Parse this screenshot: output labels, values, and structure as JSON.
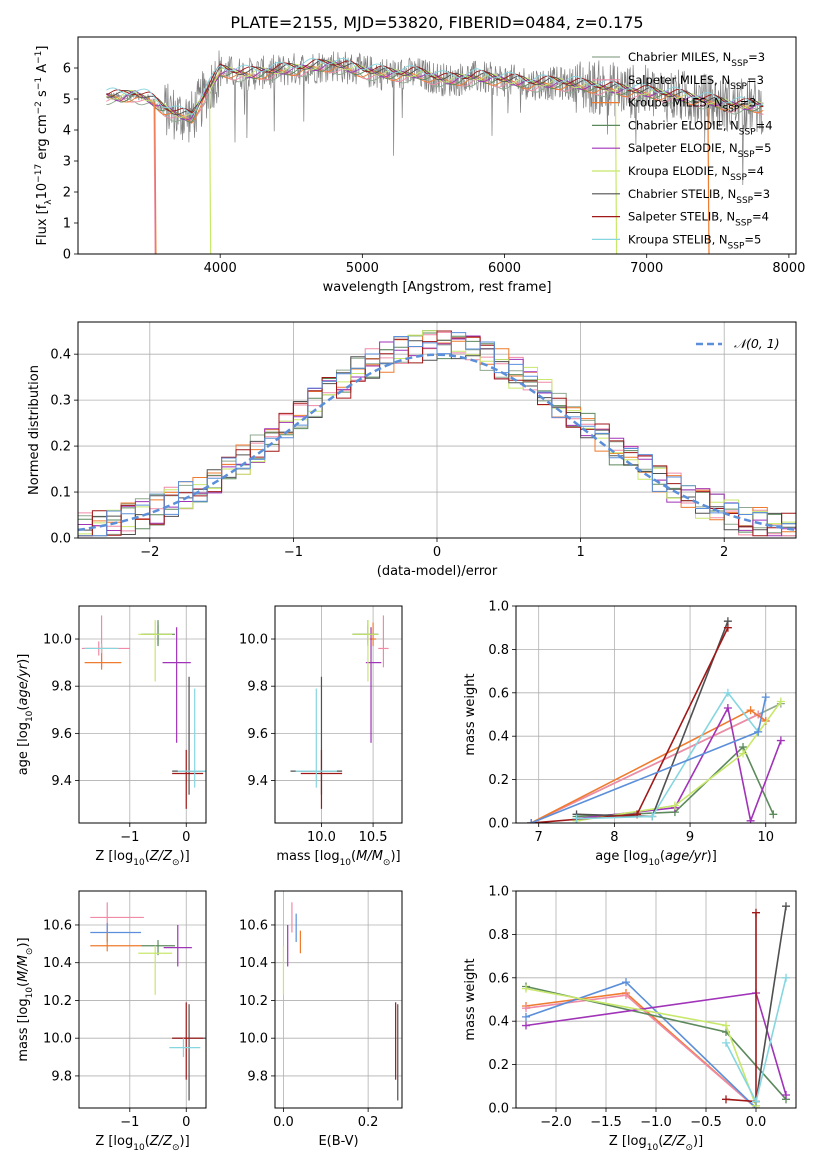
{
  "title": "PLATE=2155, MJD=53820, FIBERID=0484, z=0.175",
  "colors": {
    "Chabrier MILES": "#8fa88f",
    "Salpeter MILES": "#f08aa6",
    "Kroupa MILES": "#ef7b2e",
    "Chabrier ELODIE": "#5d8a5d",
    "Salpeter ELODIE": "#a033b8",
    "Kroupa ELODIE": "#c8e86b",
    "Chabrier STELIB": "#505050",
    "Salpeter STELIB": "#a01818",
    "Kroupa STELIB": "#86d6e0",
    "data": "#808080",
    "normal": "#5b8fd9"
  },
  "chart_data": [
    {
      "id": "spectrum",
      "type": "line",
      "title": "PLATE=2155, MJD=53820, FIBERID=0484, z=0.175",
      "xlabel": "wavelength [Angstrom, rest frame]",
      "ylabel": "Flux [f_λ 10^-17 erg cm^-2 s^-1 A^-1]",
      "xlim": [
        3000,
        8050
      ],
      "ylim": [
        0,
        7
      ],
      "xticks": [
        4000,
        5000,
        6000,
        7000,
        8000
      ],
      "yticks": [
        0,
        1,
        2,
        3,
        4,
        5,
        6
      ],
      "legend_position": "right",
      "series": [
        {
          "name": "Chabrier MILES",
          "sub": "SSP",
          "n": "3"
        },
        {
          "name": "Salpeter MILES",
          "sub": "SSP",
          "n": "3"
        },
        {
          "name": "Kroupa MILES",
          "sub": "SSP",
          "n": "3"
        },
        {
          "name": "Chabrier ELODIE",
          "sub": "SSP",
          "n": "4"
        },
        {
          "name": "Salpeter ELODIE",
          "sub": "SSP",
          "n": "5"
        },
        {
          "name": "Kroupa ELODIE",
          "sub": "SSP",
          "n": "4"
        },
        {
          "name": "Chabrier STELIB",
          "sub": "SSP",
          "n": "3"
        },
        {
          "name": "Salpeter STELIB",
          "sub": "SSP",
          "n": "4"
        },
        {
          "name": "Kroupa STELIB",
          "sub": "SSP",
          "n": "5"
        }
      ],
      "model_shape": [
        [
          3200,
          5.1
        ],
        [
          3300,
          5.05
        ],
        [
          3400,
          5.15
        ],
        [
          3500,
          5.0
        ],
        [
          3600,
          4.7
        ],
        [
          3700,
          4.5
        ],
        [
          3800,
          4.4
        ],
        [
          3900,
          5.2
        ],
        [
          4000,
          5.9
        ],
        [
          4200,
          5.8
        ],
        [
          4400,
          5.9
        ],
        [
          4600,
          6.0
        ],
        [
          4800,
          6.1
        ],
        [
          5000,
          5.9
        ],
        [
          5200,
          5.8
        ],
        [
          5400,
          5.8
        ],
        [
          5600,
          5.6
        ],
        [
          5800,
          5.7
        ],
        [
          6000,
          5.6
        ],
        [
          6200,
          5.5
        ],
        [
          6400,
          5.5
        ],
        [
          6600,
          5.4
        ],
        [
          6800,
          5.3
        ],
        [
          7000,
          5.2
        ],
        [
          7200,
          5.1
        ],
        [
          7400,
          4.95
        ],
        [
          7600,
          4.8
        ],
        [
          7800,
          4.75
        ]
      ]
    },
    {
      "id": "residuals",
      "type": "line",
      "xlabel": "(data-model)/error",
      "ylabel": "Normed distribution",
      "xlim": [
        -2.5,
        2.5
      ],
      "ylim": [
        0,
        0.47
      ],
      "xticks": [
        -2,
        -1,
        0,
        1,
        2
      ],
      "yticks": [
        0.0,
        0.1,
        0.2,
        0.3,
        0.4
      ],
      "legend": "𝒩(0, 1)",
      "legend_position": "top-right",
      "bin_width": 0.1,
      "hist_centers_note": "normal pdf overlaid",
      "normal": {
        "mu": 0,
        "sigma": 1
      }
    },
    {
      "id": "age_vs_Z",
      "type": "scatter",
      "xlabel": "Z [log10(Z/Z⊙)]",
      "ylabel": "age  [log10(age/yr)]",
      "xlim": [
        -1.9,
        0.35
      ],
      "ylim": [
        9.22,
        10.14
      ],
      "xticks": [
        -1,
        0
      ],
      "yticks": [
        9.4,
        9.6,
        9.8,
        10.0
      ],
      "points": [
        {
          "m": "Chabrier MILES",
          "x": -0.5,
          "y": 10.02,
          "ex": [
            -0.25,
            0.25
          ],
          "ey": [
            -0.04,
            0.04
          ]
        },
        {
          "m": "Salpeter MILES",
          "x": -1.5,
          "y": 9.96,
          "ex": [
            -0.3,
            0.5
          ],
          "ey": [
            -0.08,
            0.14
          ]
        },
        {
          "m": "Kroupa MILES",
          "x": -1.5,
          "y": 9.9,
          "ex": [
            -0.3,
            0.35
          ],
          "ey": [
            -0.03,
            0.07
          ]
        },
        {
          "m": "Chabrier ELODIE",
          "x": -0.5,
          "y": 10.02,
          "ex": [
            -0.3,
            0.3
          ],
          "ey": [
            -0.05,
            0.06
          ]
        },
        {
          "m": "Salpeter ELODIE",
          "x": -0.17,
          "y": 9.9,
          "ex": [
            -0.25,
            0.25
          ],
          "ey": [
            -0.34,
            0.15
          ]
        },
        {
          "m": "Kroupa ELODIE",
          "x": -0.55,
          "y": 10.02,
          "ex": [
            -0.3,
            0.3
          ],
          "ey": [
            -0.2,
            0.06
          ]
        },
        {
          "m": "Chabrier STELIB",
          "x": 0.05,
          "y": 9.44,
          "ex": [
            -0.3,
            0.3
          ],
          "ey": [
            -0.1,
            0.4
          ]
        },
        {
          "m": "Salpeter STELIB",
          "x": 0.0,
          "y": 9.43,
          "ex": [
            -0.25,
            0.3
          ],
          "ey": [
            -0.15,
            0.1
          ]
        },
        {
          "m": "Kroupa STELIB",
          "x": 0.15,
          "y": 9.44,
          "ex": [
            -0.3,
            0.3
          ],
          "ey": [
            -0.07,
            0.35
          ]
        },
        {
          "m": "Salpeter MILES",
          "x": -1.55,
          "y": 9.96,
          "ex": [
            -0.3,
            0.3
          ],
          "ey": [
            -0.03,
            0.03
          ]
        },
        {
          "m": "Kroupa STELIB",
          "x": -1.5,
          "y": 9.96,
          "ex": [
            -0.3,
            0.3
          ],
          "ey": [
            -0.02,
            0.02
          ]
        }
      ]
    },
    {
      "id": "age_vs_mass",
      "type": "scatter",
      "xlabel": "mass [log10(M/M⊙)]",
      "xlim": [
        9.55,
        10.78
      ],
      "ylim": [
        9.22,
        10.14
      ],
      "xticks": [
        10.0,
        10.5
      ],
      "yticks": [
        9.4,
        9.6,
        9.8,
        10.0
      ],
      "points": [
        {
          "m": "Chabrier MILES",
          "x": 10.45,
          "y": 10.02,
          "ex": [
            -0.15,
            0.1
          ],
          "ey": [
            -0.04,
            0.04
          ]
        },
        {
          "m": "Salpeter MILES",
          "x": 10.6,
          "y": 9.96,
          "ex": [
            -0.05,
            0.05
          ],
          "ey": [
            -0.08,
            0.14
          ]
        },
        {
          "m": "Kroupa MILES",
          "x": 10.5,
          "y": 10.0,
          "ex": [
            -0.03,
            0.03
          ],
          "ey": [
            -0.03,
            0.07
          ]
        },
        {
          "m": "Chabrier ELODIE",
          "x": 10.45,
          "y": 10.02,
          "ex": [
            -0.15,
            0.1
          ],
          "ey": [
            -0.05,
            0.06
          ]
        },
        {
          "m": "Salpeter ELODIE",
          "x": 10.48,
          "y": 9.9,
          "ex": [
            -0.05,
            0.1
          ],
          "ey": [
            -0.34,
            0.15
          ]
        },
        {
          "m": "Kroupa ELODIE",
          "x": 10.45,
          "y": 10.02,
          "ex": [
            -0.15,
            0.1
          ],
          "ey": [
            -0.2,
            0.06
          ]
        },
        {
          "m": "Chabrier STELIB",
          "x": 10.0,
          "y": 9.44,
          "ex": [
            -0.3,
            0.2
          ],
          "ey": [
            -0.1,
            0.4
          ]
        },
        {
          "m": "Salpeter STELIB",
          "x": 10.0,
          "y": 9.43,
          "ex": [
            -0.2,
            0.2
          ],
          "ey": [
            -0.15,
            0.1
          ]
        },
        {
          "m": "Kroupa STELIB",
          "x": 9.95,
          "y": 9.44,
          "ex": [
            -0.2,
            0.2
          ],
          "ey": [
            -0.07,
            0.35
          ]
        }
      ]
    },
    {
      "id": "weight_vs_age",
      "type": "line",
      "xlabel": "age  [log10(age/yr)]",
      "ylabel": "mass weight",
      "xlim": [
        6.7,
        10.4
      ],
      "ylim": [
        0,
        1.0
      ],
      "xticks": [
        7,
        8,
        9,
        10
      ],
      "yticks": [
        0.0,
        0.2,
        0.4,
        0.6,
        0.8,
        1.0
      ],
      "series": [
        {
          "m": "Chabrier MILES",
          "x": [
            6.9,
            9.9,
            10.2
          ],
          "y": [
            0.0,
            0.5,
            0.55
          ]
        },
        {
          "m": "Salpeter MILES",
          "x": [
            6.9,
            9.9,
            10.0
          ],
          "y": [
            0.0,
            0.5,
            0.47
          ]
        },
        {
          "m": "Kroupa MILES",
          "x": [
            6.9,
            9.8,
            10.0
          ],
          "y": [
            0.0,
            0.52,
            0.47
          ]
        },
        {
          "m": "Chabrier ELODIE",
          "x": [
            7.5,
            8.8,
            9.7,
            10.1
          ],
          "y": [
            0.03,
            0.05,
            0.35,
            0.04
          ]
        },
        {
          "m": "Salpeter ELODIE",
          "x": [
            7.5,
            8.8,
            9.5,
            9.8,
            10.2
          ],
          "y": [
            0.02,
            0.07,
            0.53,
            0.01,
            0.38
          ]
        },
        {
          "m": "Kroupa ELODIE",
          "x": [
            7.5,
            8.8,
            9.7,
            10.2
          ],
          "y": [
            0.01,
            0.08,
            0.32,
            0.56
          ]
        },
        {
          "m": "Chabrier STELIB",
          "x": [
            7.5,
            8.5,
            9.5
          ],
          "y": [
            0.04,
            0.03,
            0.93
          ]
        },
        {
          "m": "Salpeter STELIB",
          "x": [
            6.9,
            8.3,
            9.5
          ],
          "y": [
            0.0,
            0.04,
            0.9
          ]
        },
        {
          "m": "Kroupa STELIB",
          "x": [
            7.5,
            8.5,
            9.5,
            9.9
          ],
          "y": [
            0.02,
            0.03,
            0.6,
            0.42
          ]
        },
        {
          "m": "normal",
          "x": [
            6.9,
            9.9,
            10.0
          ],
          "y": [
            0.0,
            0.42,
            0.58
          ]
        }
      ]
    },
    {
      "id": "mass_vs_Z",
      "type": "scatter",
      "xlabel": "Z [log10(Z/Z⊙)]",
      "ylabel": "mass [log10(M/M⊙)]",
      "xlim": [
        -1.9,
        0.35
      ],
      "ylim": [
        9.63,
        10.78
      ],
      "xticks": [
        -1,
        0
      ],
      "yticks": [
        9.8,
        10.0,
        10.2,
        10.4,
        10.6
      ],
      "points": [
        {
          "m": "Salpeter MILES",
          "x": -1.4,
          "y": 10.64,
          "ex": [
            -0.3,
            0.65
          ],
          "ey": [
            -0.08,
            0.08
          ]
        },
        {
          "m": "normal",
          "x": -1.4,
          "y": 10.56,
          "ex": [
            -0.3,
            0.6
          ],
          "ey": [
            -0.05,
            0.05
          ]
        },
        {
          "m": "Kroupa MILES",
          "x": -1.4,
          "y": 10.49,
          "ex": [
            -0.3,
            0.6
          ],
          "ey": [
            -0.03,
            0.07
          ]
        },
        {
          "m": "Chabrier ELODIE",
          "x": -0.5,
          "y": 10.49,
          "ex": [
            -0.3,
            0.3
          ],
          "ey": [
            -0.05,
            0.03
          ]
        },
        {
          "m": "Salpeter ELODIE",
          "x": -0.15,
          "y": 10.48,
          "ex": [
            -0.25,
            0.25
          ],
          "ey": [
            -0.1,
            0.12
          ]
        },
        {
          "m": "Kroupa ELODIE",
          "x": -0.55,
          "y": 10.45,
          "ex": [
            -0.3,
            0.3
          ],
          "ey": [
            -0.22,
            0.04
          ]
        },
        {
          "m": "Chabrier STELIB",
          "x": 0.05,
          "y": 10.0,
          "ex": [
            -0.3,
            0.3
          ],
          "ey": [
            -0.33,
            0.18
          ]
        },
        {
          "m": "Salpeter STELIB",
          "x": 0.0,
          "y": 10.0,
          "ex": [
            -0.25,
            0.3
          ],
          "ey": [
            -0.22,
            0.19
          ]
        },
        {
          "m": "Kroupa STELIB",
          "x": -0.05,
          "y": 9.95,
          "ex": [
            -0.25,
            0.3
          ],
          "ey": [
            -0.05,
            0.05
          ]
        }
      ]
    },
    {
      "id": "mass_vs_ebv",
      "type": "scatter",
      "xlabel": "E(B-V)",
      "xlim": [
        -0.02,
        0.28
      ],
      "ylim": [
        9.63,
        10.78
      ],
      "xticks": [
        0.0,
        0.2
      ],
      "yticks": [
        9.8,
        10.0,
        10.2,
        10.4,
        10.6
      ],
      "points": [
        {
          "m": "Salpeter MILES",
          "x": 0.02,
          "y": 10.64,
          "ey": [
            -0.08,
            0.08
          ]
        },
        {
          "m": "normal",
          "x": 0.03,
          "y": 10.56,
          "ey": [
            -0.05,
            0.1
          ]
        },
        {
          "m": "Kroupa MILES",
          "x": 0.04,
          "y": 10.5,
          "ey": [
            -0.05,
            0.07
          ]
        },
        {
          "m": "Salpeter ELODIE",
          "x": 0.01,
          "y": 10.48,
          "ey": [
            -0.1,
            0.12
          ]
        },
        {
          "m": "Kroupa ELODIE",
          "x": 0.0,
          "y": 10.45,
          "ey": [
            -0.22,
            0.04
          ]
        },
        {
          "m": "Chabrier STELIB",
          "x": 0.27,
          "y": 10.0,
          "ey": [
            -0.33,
            0.18
          ]
        },
        {
          "m": "Salpeter STELIB",
          "x": 0.265,
          "y": 10.0,
          "ey": [
            -0.22,
            0.19
          ]
        }
      ]
    },
    {
      "id": "weight_vs_Z",
      "type": "line",
      "xlabel": "Z [log10(Z/Z⊙)]",
      "ylabel": "mass weight",
      "xlim": [
        -2.4,
        0.4
      ],
      "ylim": [
        0,
        1.0
      ],
      "xticks": [
        -2.0,
        -1.5,
        -1.0,
        -0.5,
        0.0
      ],
      "yticks": [
        0.0,
        0.2,
        0.4,
        0.6,
        0.8,
        1.0
      ],
      "series": [
        {
          "m": "Kroupa MILES",
          "x": [
            -2.3,
            -1.3,
            0.0
          ],
          "y": [
            0.47,
            0.53,
            0.0
          ]
        },
        {
          "m": "Salpeter MILES",
          "x": [
            -2.3,
            -1.3,
            0.0
          ],
          "y": [
            0.46,
            0.52,
            0.0
          ]
        },
        {
          "m": "normal",
          "x": [
            -2.3,
            -1.3,
            0.0
          ],
          "y": [
            0.42,
            0.58,
            0.0
          ]
        },
        {
          "m": "Chabrier ELODIE",
          "x": [
            -2.3,
            -0.3,
            0.3
          ],
          "y": [
            0.56,
            0.35,
            0.04
          ]
        },
        {
          "m": "Salpeter ELODIE",
          "x": [
            -2.3,
            0.0,
            0.3
          ],
          "y": [
            0.38,
            0.53,
            0.06
          ]
        },
        {
          "m": "Kroupa ELODIE",
          "x": [
            -2.3,
            -0.3,
            0.0
          ],
          "y": [
            0.55,
            0.38,
            0.01
          ]
        },
        {
          "m": "Chabrier STELIB",
          "x": [
            0.0,
            0.3
          ],
          "y": [
            0.03,
            0.93
          ]
        },
        {
          "m": "Salpeter STELIB",
          "x": [
            -0.3,
            0.0,
            0.0
          ],
          "y": [
            0.04,
            0.03,
            0.9
          ]
        },
        {
          "m": "Kroupa STELIB",
          "x": [
            -0.3,
            0.0,
            0.3
          ],
          "y": [
            0.3,
            0.03,
            0.6
          ]
        }
      ]
    }
  ]
}
